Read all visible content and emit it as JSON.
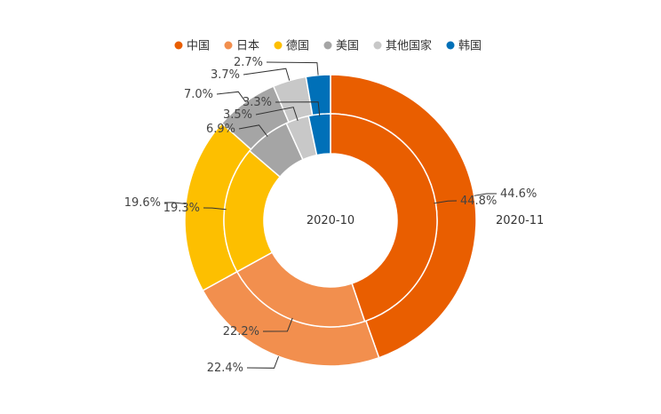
{
  "chart_data": {
    "type": "pie",
    "subtype": "nested-donut",
    "categories": [
      "中国",
      "日本",
      "德国",
      "美国",
      "其他国家",
      "韩国"
    ],
    "colors": [
      "#e95e00",
      "#f28f4e",
      "#fdbf00",
      "#a5a5a5",
      "#c8c8c8",
      "#0070b8"
    ],
    "legend_position": "top",
    "series": [
      {
        "name": "2020-10",
        "ring": "inner",
        "values": [
          44.8,
          22.2,
          19.3,
          6.9,
          3.5,
          3.3
        ],
        "labels": [
          "44.8%",
          "22.2%",
          "19.3%",
          "6.9%",
          "3.5%",
          "3.3%"
        ]
      },
      {
        "name": "2020-11",
        "ring": "outer",
        "values": [
          44.6,
          22.4,
          19.6,
          7.0,
          3.7,
          2.7
        ],
        "labels": [
          "44.6%",
          "22.4%",
          "19.6%",
          "7.0%",
          "3.7%",
          "2.7%"
        ]
      }
    ]
  }
}
